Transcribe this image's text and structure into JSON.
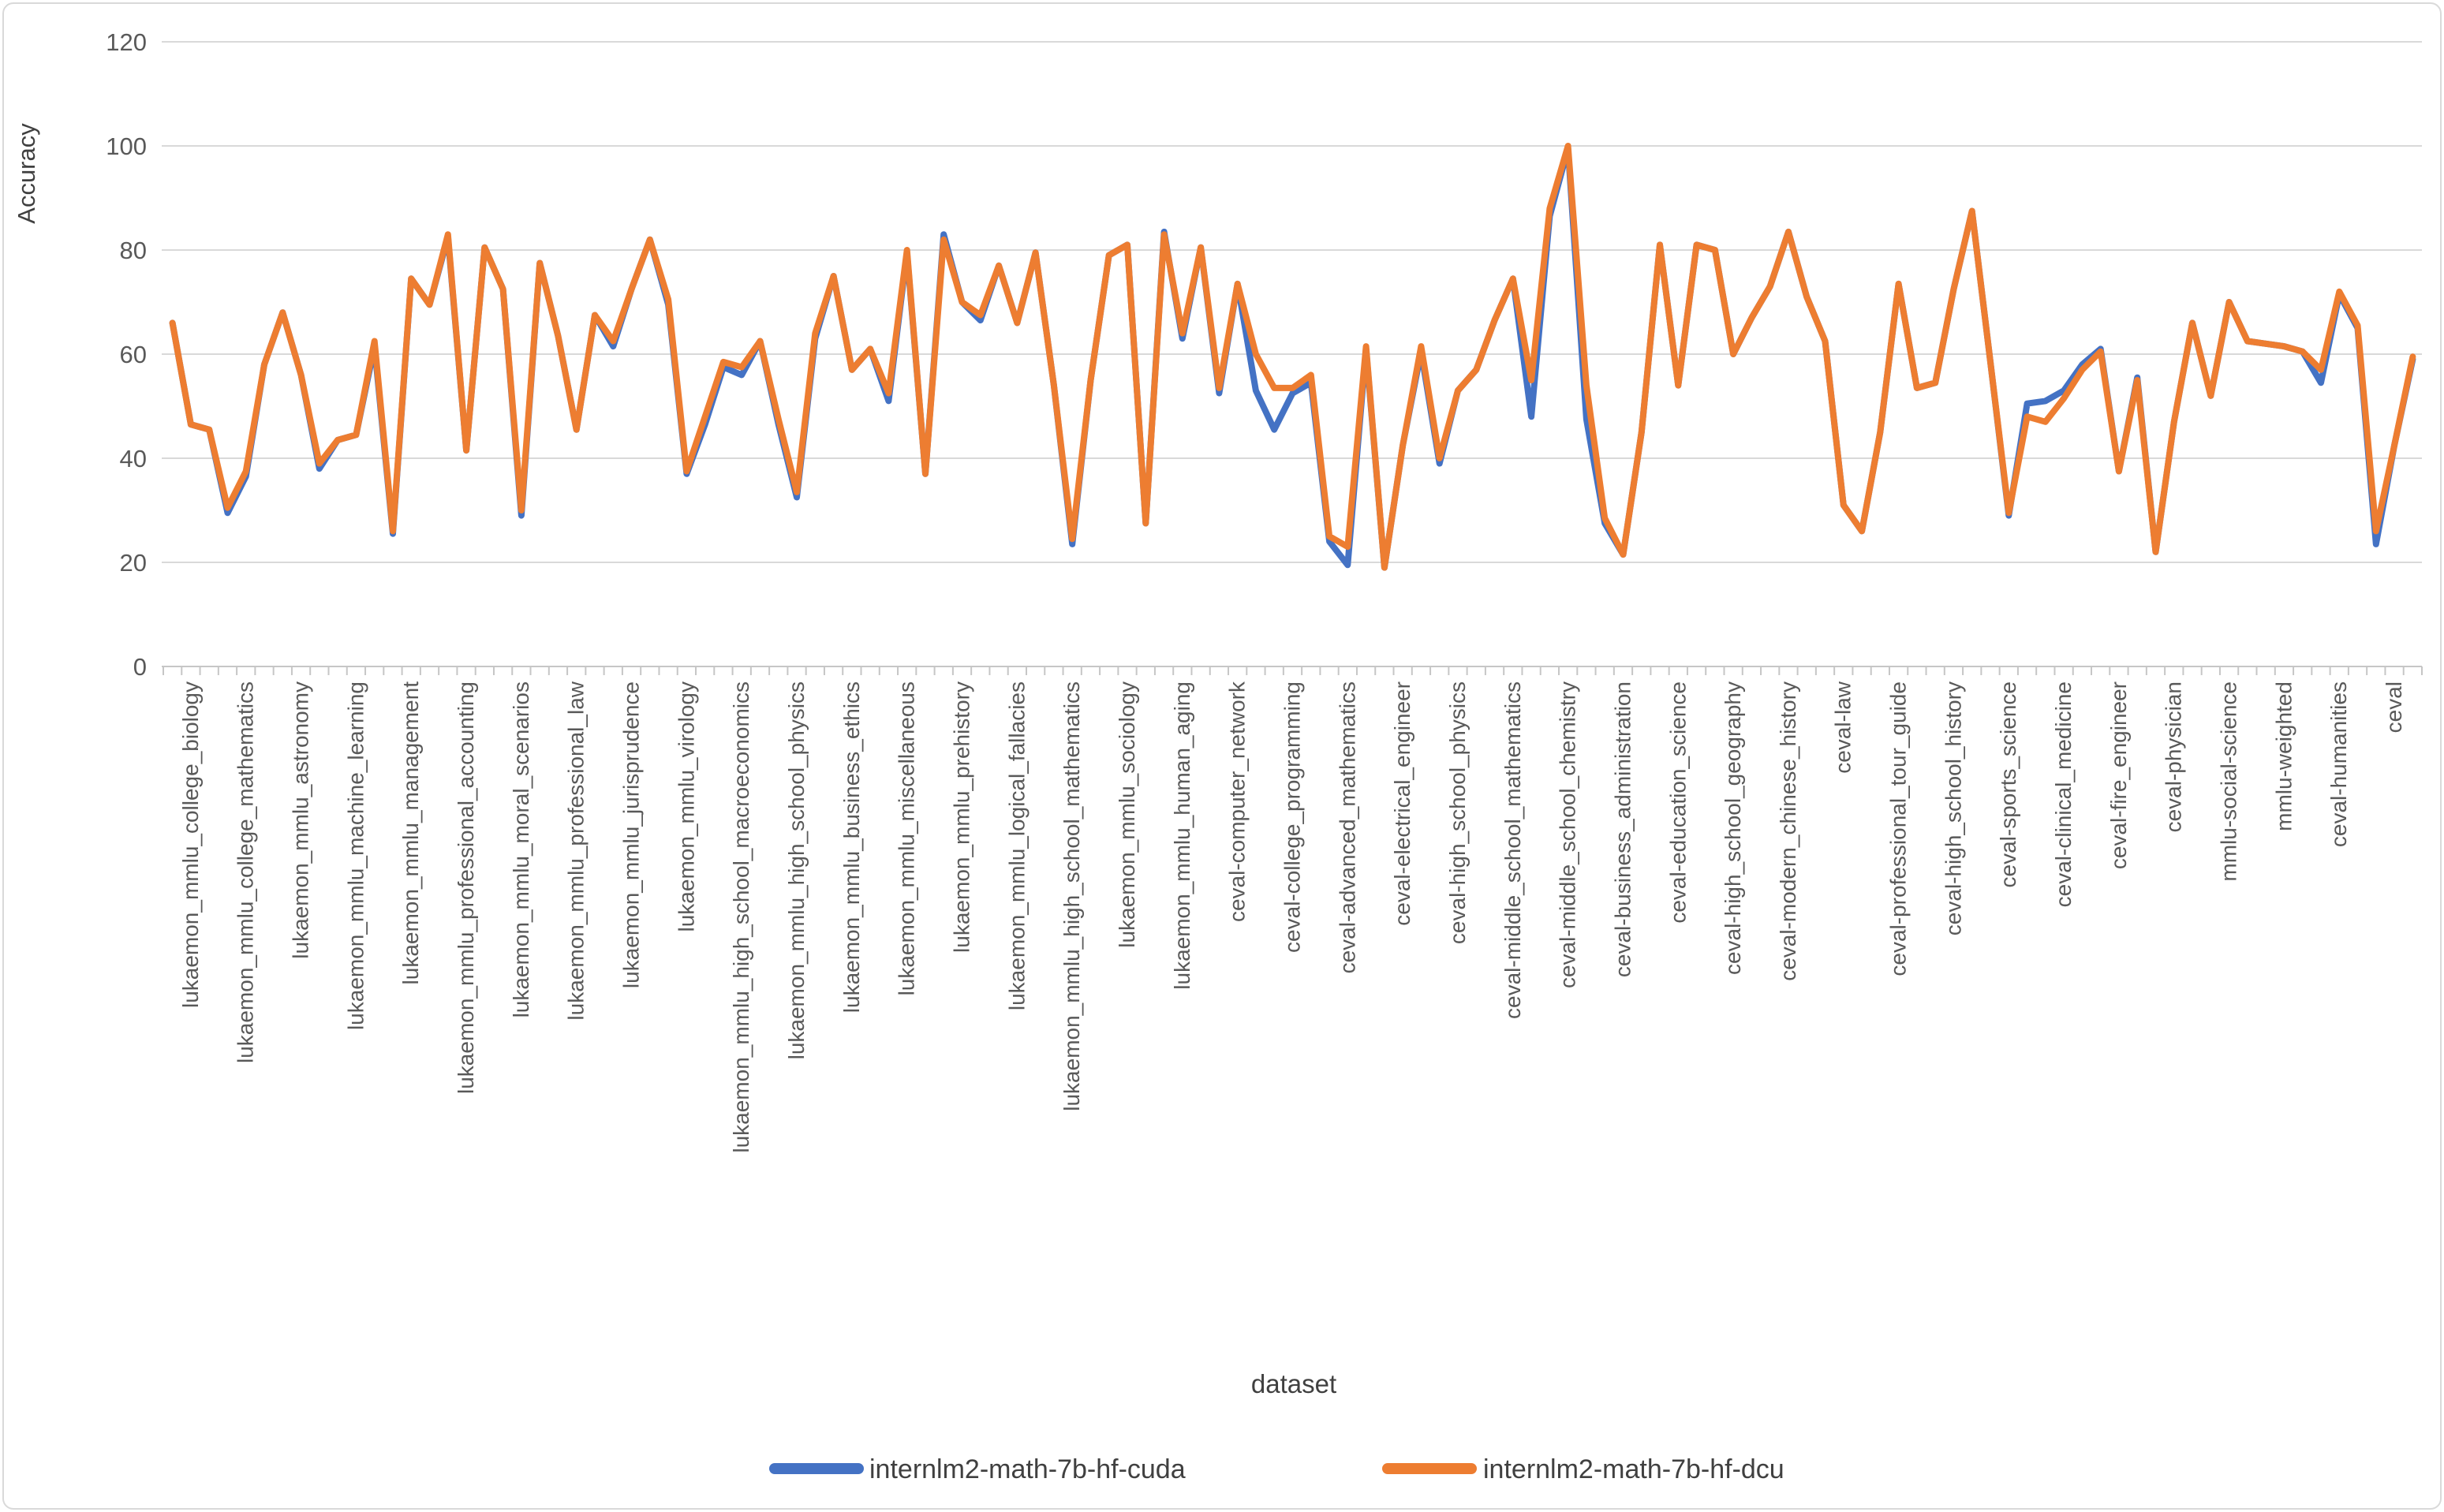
{
  "chart_data": {
    "type": "line",
    "title": "",
    "xlabel": "dataset",
    "ylabel": "Accuracy",
    "ylim": [
      0,
      120
    ],
    "yticks": [
      0,
      20,
      40,
      60,
      80,
      100,
      120
    ],
    "grid": "horizontal",
    "legend_position": "bottom",
    "n_points": 123,
    "x_label_start_index": 1,
    "x_label_interval": 3,
    "x_tick_labels": [
      "lukaemon_mmlu_college_biology",
      "lukaemon_mmlu_college_mathematics",
      "lukaemon_mmlu_astronomy",
      "lukaemon_mmlu_machine_learning",
      "lukaemon_mmlu_management",
      "lukaemon_mmlu_professional_accounting",
      "lukaemon_mmlu_moral_scenarios",
      "lukaemon_mmlu_professional_law",
      "lukaemon_mmlu_jurisprudence",
      "lukaemon_mmlu_virology",
      "lukaemon_mmlu_high_school_macroeconomics",
      "lukaemon_mmlu_high_school_physics",
      "lukaemon_mmlu_business_ethics",
      "lukaemon_mmlu_miscellaneous",
      "lukaemon_mmlu_prehistory",
      "lukaemon_mmlu_logical_fallacies",
      "lukaemon_mmlu_high_school_mathematics",
      "lukaemon_mmlu_sociology",
      "lukaemon_mmlu_human_aging",
      "ceval-computer_network",
      "ceval-college_programming",
      "ceval-advanced_mathematics",
      "ceval-electrical_engineer",
      "ceval-high_school_physics",
      "ceval-middle_school_mathematics",
      "ceval-middle_school_chemistry",
      "ceval-business_administration",
      "ceval-education_science",
      "ceval-high_school_geography",
      "ceval-modern_chinese_history",
      "ceval-law",
      "ceval-professional_tour_guide",
      "ceval-high_school_history",
      "ceval-sports_science",
      "ceval-clinical_medicine",
      "ceval-fire_engineer",
      "ceval-physician",
      "mmlu-social-science",
      "mmlu-weighted",
      "ceval-humanities",
      "ceval"
    ],
    "series": [
      {
        "name": "internlm2-math-7b-hf-cuda",
        "color": "#4472C4",
        "values": [
          66,
          46.5,
          45.5,
          29.5,
          36.5,
          58,
          68,
          56,
          38,
          43.5,
          44.5,
          61.5,
          25.5,
          74.5,
          69.5,
          82.5,
          41.5,
          80.5,
          72.5,
          29,
          77.5,
          63.5,
          45.5,
          67.5,
          61.5,
          72.5,
          82,
          69.5,
          37,
          46.5,
          57.5,
          56,
          62.5,
          46.5,
          32.5,
          63,
          75,
          57,
          61,
          51,
          79.5,
          37,
          83,
          70,
          66.5,
          77,
          66,
          79.5,
          54,
          23.5,
          55,
          79,
          81,
          27.5,
          83.5,
          63,
          80.5,
          52.5,
          73.5,
          53,
          45.5,
          52.5,
          54.5,
          24,
          19.5,
          61,
          19,
          42.5,
          60.5,
          39,
          53,
          57,
          66.5,
          74.5,
          48,
          86.5,
          99.5,
          47.5,
          27.5,
          21.5,
          45,
          81,
          54,
          81,
          80,
          60,
          67,
          73,
          83.5,
          71,
          62.5,
          31,
          26,
          45,
          73.5,
          53.5,
          54.5,
          72.5,
          87.5,
          58.5,
          29,
          50.5,
          51,
          53,
          58,
          61,
          37.5,
          55.5,
          22,
          47,
          66,
          52,
          70,
          62.5,
          62,
          61.5,
          60.5,
          54.5,
          71.5,
          65,
          23.5,
          42.5,
          59
        ]
      },
      {
        "name": "internlm2-math-7b-hf-dcu",
        "color": "#ED7D31",
        "values": [
          66,
          46.5,
          45.5,
          30.5,
          37.5,
          58,
          68,
          56,
          39,
          43.5,
          44.5,
          62.5,
          26,
          74.5,
          69.5,
          83,
          41.5,
          80.5,
          72.5,
          30,
          77.5,
          63.5,
          45.5,
          67.5,
          62.5,
          72.5,
          82,
          70.5,
          37.5,
          48,
          58.5,
          57.5,
          62.5,
          47.5,
          33.5,
          64,
          75,
          57,
          61,
          52.5,
          80,
          37,
          82,
          70,
          67.5,
          77,
          66,
          79.5,
          54,
          24.5,
          55,
          79,
          81,
          27.5,
          83,
          64,
          80.5,
          53.5,
          73.5,
          60,
          53.5,
          53.5,
          56,
          25,
          23,
          61.5,
          19,
          42.5,
          61.5,
          40,
          53,
          57,
          66.5,
          74.5,
          55,
          88,
          100,
          54,
          28.5,
          21.5,
          45,
          81,
          54,
          81,
          80,
          60,
          67,
          73,
          83.5,
          71,
          62.5,
          31,
          26,
          45,
          73.5,
          53.5,
          54.5,
          72.5,
          87.5,
          58.5,
          29.5,
          48,
          47,
          51.5,
          57,
          60.5,
          37.5,
          55,
          22,
          47,
          66,
          52,
          70,
          62.5,
          62,
          61.5,
          60.5,
          57,
          72,
          65.5,
          26,
          42.5,
          59.5
        ]
      }
    ]
  },
  "colors": {
    "gridline": "#d9d9d9",
    "axis": "#c6c6c6",
    "tick_text": "#595959",
    "title_text": "#404040",
    "frame_border": "#d9d9d9",
    "background": "#ffffff"
  }
}
